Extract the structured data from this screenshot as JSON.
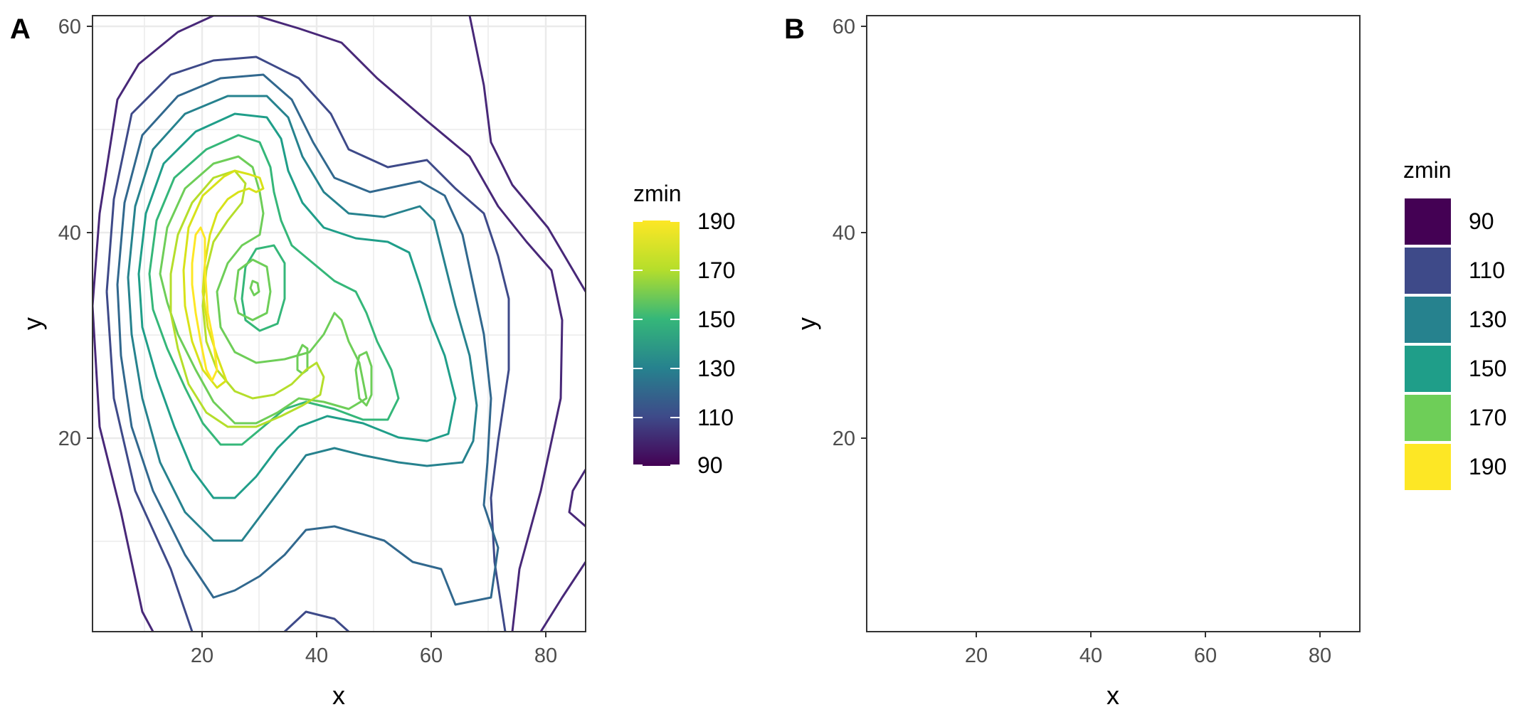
{
  "chart_data": [
    {
      "tag": "A",
      "type": "contour",
      "xlabel": "x",
      "ylabel": "y",
      "xlim": [
        1,
        87
      ],
      "ylim": [
        1,
        61
      ],
      "xticks": [
        20,
        40,
        60,
        80
      ],
      "yticks": [
        20,
        40,
        60
      ],
      "grid": true,
      "legend": {
        "title": "zmin",
        "kind": "colorbar",
        "position": "right",
        "labels": [
          "190",
          "170",
          "150",
          "130",
          "110",
          "90"
        ],
        "values": [
          190,
          170,
          150,
          130,
          110,
          90
        ]
      },
      "levels": [
        100,
        110,
        120,
        130,
        140,
        150,
        160,
        170,
        180,
        190
      ]
    },
    {
      "tag": "B",
      "type": "filled-contour",
      "xlabel": "x",
      "ylabel": "y",
      "xlim": [
        1,
        87
      ],
      "ylim": [
        1,
        61
      ],
      "xticks": [
        20,
        40,
        60,
        80
      ],
      "yticks": [
        20,
        40,
        60
      ],
      "grid": false,
      "legend": {
        "title": "zmin",
        "kind": "bins",
        "position": "right",
        "labels": [
          "90",
          "110",
          "130",
          "150",
          "170",
          "190"
        ],
        "values": [
          90,
          110,
          130,
          150,
          170,
          190
        ]
      },
      "levels": [
        90,
        100,
        110,
        120,
        130,
        140,
        150,
        160,
        170,
        180,
        190
      ]
    }
  ],
  "colors": {
    "palette": "viridis",
    "v90": "#440154",
    "v100": "#482878",
    "v110": "#3e4a89",
    "v120": "#31688e",
    "v130": "#26828e",
    "v140": "#1f9e89",
    "v150": "#35b779",
    "v160": "#6ece58",
    "v170": "#b5de2b",
    "v180": "#d8e219",
    "v190": "#fde725"
  }
}
